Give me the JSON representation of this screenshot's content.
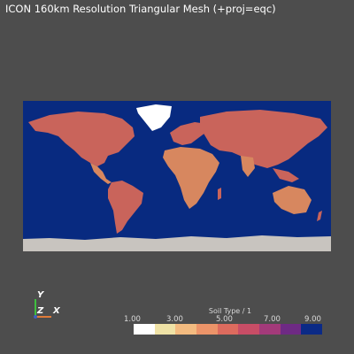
{
  "title": "ICON 160km Resolution Triangular Mesh (+proj=eqc)",
  "orientation": {
    "y_label": "Y",
    "z_label": "Z",
    "x_label": "X"
  },
  "colorbar": {
    "title": "Soil Type / 1",
    "ticks": [
      "1.00",
      "3.00",
      "5.00",
      "7.00",
      "9.00"
    ],
    "colors": [
      "#ffffff",
      "#efe2a6",
      "#f3bb80",
      "#ec9469",
      "#dd6b5e",
      "#c84d66",
      "#a33a7a",
      "#6e2a84",
      "#0b2a86"
    ]
  },
  "map_colors": {
    "ocean": "#082a80",
    "land": "#c9645b",
    "land_alt": "#d7875f",
    "ice": "#c8c4bf"
  }
}
